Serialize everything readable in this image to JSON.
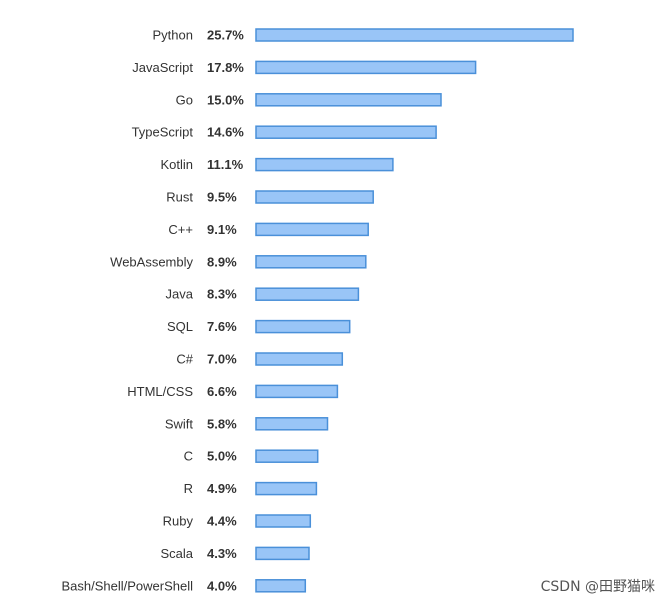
{
  "chart_data": {
    "type": "bar",
    "orientation": "horizontal",
    "categories": [
      "Python",
      "JavaScript",
      "Go",
      "TypeScript",
      "Kotlin",
      "Rust",
      "C++",
      "WebAssembly",
      "Java",
      "SQL",
      "C#",
      "HTML/CSS",
      "Swift",
      "C",
      "R",
      "Ruby",
      "Scala",
      "Bash/Shell/PowerShell"
    ],
    "values": [
      25.7,
      17.8,
      15.0,
      14.6,
      11.1,
      9.5,
      9.1,
      8.9,
      8.3,
      7.6,
      7.0,
      6.6,
      5.8,
      5.0,
      4.9,
      4.4,
      4.3,
      4.0
    ],
    "value_labels": [
      "25.7%",
      "17.8%",
      "15.0%",
      "14.6%",
      "11.1%",
      "9.5%",
      "9.1%",
      "8.9%",
      "8.3%",
      "7.6%",
      "7.0%",
      "6.6%",
      "5.8%",
      "5.0%",
      "4.9%",
      "4.4%",
      "4.3%",
      "4.0%"
    ],
    "title": "",
    "xlabel": "",
    "ylabel": "",
    "xlim": [
      0,
      25.7
    ],
    "grid": false,
    "legend": "none",
    "colors": {
      "bar_fill": "#99c5f7",
      "bar_stroke": "#4a90d9",
      "category_text": "#333333",
      "value_text": "#333333"
    }
  },
  "watermark": "CSDN @田野猫咪"
}
